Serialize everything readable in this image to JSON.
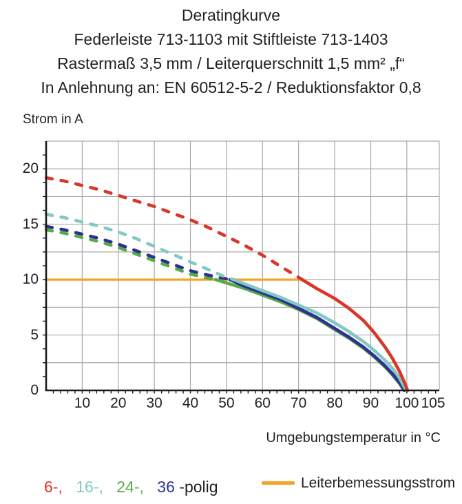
{
  "header": {
    "lines": [
      "Deratingkurve",
      "Federleiste 713-1103 mit Stiftleiste 713-1403",
      "Rastermaß 3,5 mm / Leiterquerschnitt 1,5 mm² „f“",
      "In Anlehnung an: EN 60512-5-2 / Reduktionsfaktor 0,8"
    ]
  },
  "colors": {
    "red": "#da3527",
    "cyan": "#82c8c4",
    "green": "#55ac45",
    "navy": "#2e3192",
    "orange": "#f5a428",
    "text": "#231f20",
    "grid": "#a9a9a9",
    "axis": "#1a1a1a"
  },
  "legend": {
    "p6": "6-,",
    "p16": "16-,",
    "p24": "24-,",
    "p36": "36",
    "polig_suffix": "-polig",
    "reference_label": "Leiterbemessungsstrom"
  },
  "chart_data": {
    "type": "line",
    "title": "Deratingkurve",
    "xlabel": "Umgebungstemperatur in °C",
    "ylabel": "Strom in A",
    "xlim": [
      0,
      109
    ],
    "ylim": [
      0,
      22.5
    ],
    "grid": true,
    "x_major_grid_step": 10,
    "y_major_grid_step": 2.5,
    "x_minor_tick_step": 2,
    "y_minor_tick_step": 1.25,
    "xticks": [
      10,
      20,
      30,
      40,
      50,
      60,
      70,
      80,
      90,
      100,
      105
    ],
    "yticks": [
      0,
      5,
      10,
      15,
      20
    ],
    "legend_position": "bottom",
    "series": [
      {
        "name": "6-polig",
        "color_key": "red",
        "dashed": [
          [
            0,
            19.2
          ],
          [
            5,
            18.9
          ],
          [
            10,
            18.5
          ],
          [
            15,
            18.1
          ],
          [
            20,
            17.6
          ],
          [
            25,
            17.1
          ],
          [
            30,
            16.6
          ],
          [
            35,
            16.0
          ],
          [
            40,
            15.4
          ],
          [
            45,
            14.7
          ],
          [
            50,
            13.9
          ],
          [
            55,
            13.1
          ],
          [
            60,
            12.2
          ],
          [
            65,
            11.2
          ],
          [
            71,
            10.0
          ]
        ],
        "solid": [
          [
            71,
            10.0
          ],
          [
            75,
            9.2
          ],
          [
            80,
            8.3
          ],
          [
            84,
            7.4
          ],
          [
            88,
            6.3
          ],
          [
            91,
            5.2
          ],
          [
            94,
            3.9
          ],
          [
            96,
            2.9
          ],
          [
            98,
            1.7
          ],
          [
            99.5,
            0.6
          ],
          [
            100.2,
            0
          ]
        ]
      },
      {
        "name": "16-polig",
        "color_key": "cyan",
        "dashed": [
          [
            0,
            15.9
          ],
          [
            5,
            15.6
          ],
          [
            10,
            15.2
          ],
          [
            15,
            14.8
          ],
          [
            20,
            14.3
          ],
          [
            25,
            13.7
          ],
          [
            30,
            13.0
          ],
          [
            35,
            12.3
          ],
          [
            40,
            11.6
          ],
          [
            45,
            10.9
          ],
          [
            50,
            10.2
          ],
          [
            52,
            10.0
          ]
        ],
        "solid": [
          [
            52,
            10.0
          ],
          [
            56,
            9.5
          ],
          [
            60,
            9.0
          ],
          [
            65,
            8.4
          ],
          [
            70,
            7.7
          ],
          [
            75,
            7.0
          ],
          [
            80,
            6.1
          ],
          [
            84,
            5.3
          ],
          [
            88,
            4.4
          ],
          [
            91,
            3.6
          ],
          [
            94,
            2.7
          ],
          [
            96,
            2.0
          ],
          [
            98,
            1.1
          ],
          [
            99.8,
            0
          ]
        ]
      },
      {
        "name": "24-polig",
        "color_key": "green",
        "dashed": [
          [
            0,
            14.5
          ],
          [
            5,
            14.2
          ],
          [
            10,
            13.8
          ],
          [
            15,
            13.4
          ],
          [
            20,
            12.9
          ],
          [
            25,
            12.3
          ],
          [
            30,
            11.7
          ],
          [
            35,
            11.1
          ],
          [
            40,
            10.5
          ],
          [
            44,
            10.2
          ],
          [
            47,
            10.0
          ]
        ],
        "solid": [
          [
            47,
            10.0
          ],
          [
            51,
            9.6
          ],
          [
            55,
            9.2
          ],
          [
            60,
            8.6
          ],
          [
            65,
            8.0
          ],
          [
            70,
            7.3
          ],
          [
            75,
            6.5
          ],
          [
            80,
            5.5
          ],
          [
            84,
            4.7
          ],
          [
            88,
            3.8
          ],
          [
            91,
            3.0
          ],
          [
            94,
            2.1
          ],
          [
            96,
            1.4
          ],
          [
            98,
            0.6
          ],
          [
            99.2,
            0
          ]
        ]
      },
      {
        "name": "36-polig",
        "color_key": "navy",
        "dashed": [
          [
            0,
            14.8
          ],
          [
            5,
            14.5
          ],
          [
            10,
            14.1
          ],
          [
            15,
            13.7
          ],
          [
            20,
            13.2
          ],
          [
            25,
            12.6
          ],
          [
            30,
            12.0
          ],
          [
            35,
            11.4
          ],
          [
            40,
            10.8
          ],
          [
            45,
            10.4
          ],
          [
            51,
            10.0
          ]
        ],
        "solid": [
          [
            51,
            10.0
          ],
          [
            55,
            9.4
          ],
          [
            60,
            8.8
          ],
          [
            65,
            8.2
          ],
          [
            70,
            7.4
          ],
          [
            75,
            6.6
          ],
          [
            80,
            5.6
          ],
          [
            84,
            4.8
          ],
          [
            88,
            3.9
          ],
          [
            91,
            3.1
          ],
          [
            94,
            2.2
          ],
          [
            96,
            1.5
          ],
          [
            98,
            0.7
          ],
          [
            99.4,
            0
          ]
        ]
      }
    ],
    "reference_line": {
      "name": "Leiterbemessungsstrom",
      "color_key": "orange",
      "y": 10,
      "x_start": 0,
      "x_end": 71
    }
  }
}
